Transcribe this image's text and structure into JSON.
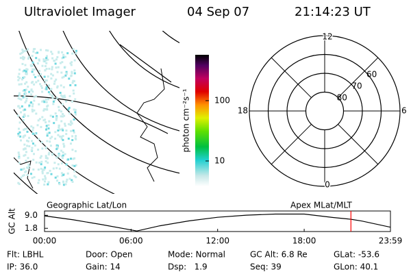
{
  "header": {
    "title": "Ultraviolet Imager",
    "date": "04 Sep 07",
    "time": "21:14:23 UT"
  },
  "colorbar": {
    "label": "photon cm⁻²s⁻¹",
    "log_scale": true,
    "lim": [
      3.8,
      575
    ],
    "ticks": [
      10,
      100
    ]
  },
  "polar": {
    "rlim": [
      90,
      50
    ],
    "rings": [
      80,
      70,
      60
    ],
    "mlt_labels": [
      12,
      6,
      0,
      18
    ]
  },
  "chart_data": {
    "type": "line",
    "title_left": "Geographic Lat/Lon",
    "title_right": "Apex MLat/MLT",
    "ylabel": "GC Alt",
    "x": [
      0,
      2,
      4,
      6.4,
      8,
      10,
      12,
      14,
      16,
      18,
      20,
      21.24,
      22,
      23.98
    ],
    "values": [
      8.7,
      6.5,
      3.8,
      0.3,
      3.2,
      5.9,
      7.9,
      9.1,
      9.7,
      9.7,
      7.8,
      6.8,
      5.8,
      2.4
    ],
    "color": "#000000",
    "marker_x": 21.24,
    "marker_color": "#ff0000",
    "xlim": [
      0,
      23.98
    ],
    "ylim": [
      0,
      11.4
    ],
    "xticks": [
      {
        "value": 0,
        "label": "00:00"
      },
      {
        "value": 6,
        "label": "06:00"
      },
      {
        "value": 12,
        "label": "12:00"
      },
      {
        "value": 18,
        "label": "18:00"
      },
      {
        "value": 23.98,
        "label": "23:59"
      }
    ],
    "yticks": [
      {
        "value": 1.8,
        "label": "1.8"
      },
      {
        "value": 9,
        "label": "9.0"
      }
    ]
  },
  "footer": {
    "filter": "Flt: LBHL",
    "ip": "IP: 36.0",
    "door": "Door: Open",
    "gain": "Gain: 14",
    "mode": "Mode: Normal",
    "dsp": "Dsp:   1.9",
    "gc_alt": "GC Alt: 6.8 Re",
    "seq": "Seq: 39",
    "glat": "GLat: -53.6",
    "glon": "GLon: 40.1"
  }
}
